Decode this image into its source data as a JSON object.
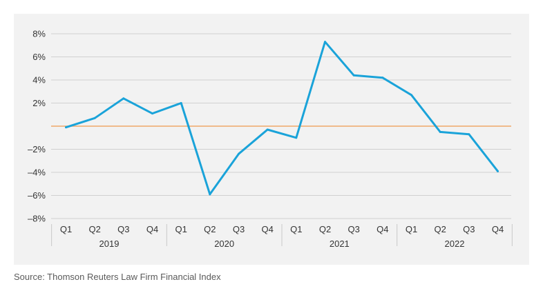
{
  "chart_data": {
    "type": "line",
    "categories": [
      "Q1",
      "Q2",
      "Q3",
      "Q4",
      "Q1",
      "Q2",
      "Q3",
      "Q4",
      "Q1",
      "Q2",
      "Q3",
      "Q4",
      "Q1",
      "Q2",
      "Q3",
      "Q4"
    ],
    "groups": [
      {
        "label": "2019",
        "count": 4
      },
      {
        "label": "2020",
        "count": 4
      },
      {
        "label": "2021",
        "count": 4
      },
      {
        "label": "2022",
        "count": 4
      }
    ],
    "series": [
      {
        "values": [
          -0.1,
          0.7,
          2.4,
          1.1,
          2.0,
          -5.9,
          -2.4,
          -0.3,
          -1.0,
          7.3,
          4.4,
          4.2,
          2.7,
          -0.5,
          -0.7,
          -3.9
        ],
        "color": "#1aa3d9"
      }
    ],
    "yticks": [
      {
        "value": 8,
        "label": "8%"
      },
      {
        "value": 6,
        "label": "6%"
      },
      {
        "value": 4,
        "label": "4%"
      },
      {
        "value": 2,
        "label": "2%"
      },
      {
        "value": -2,
        "label": "–2%"
      },
      {
        "value": -4,
        "label": "–4%"
      },
      {
        "value": -6,
        "label": "–6%"
      },
      {
        "value": -8,
        "label": "–8%"
      }
    ],
    "ylim": [
      -8,
      8
    ],
    "zero_line_color": "#f0a868",
    "grid": true,
    "title": "",
    "xlabel": "",
    "ylabel": ""
  },
  "source": "Source: Thomson Reuters Law Firm Financial Index"
}
